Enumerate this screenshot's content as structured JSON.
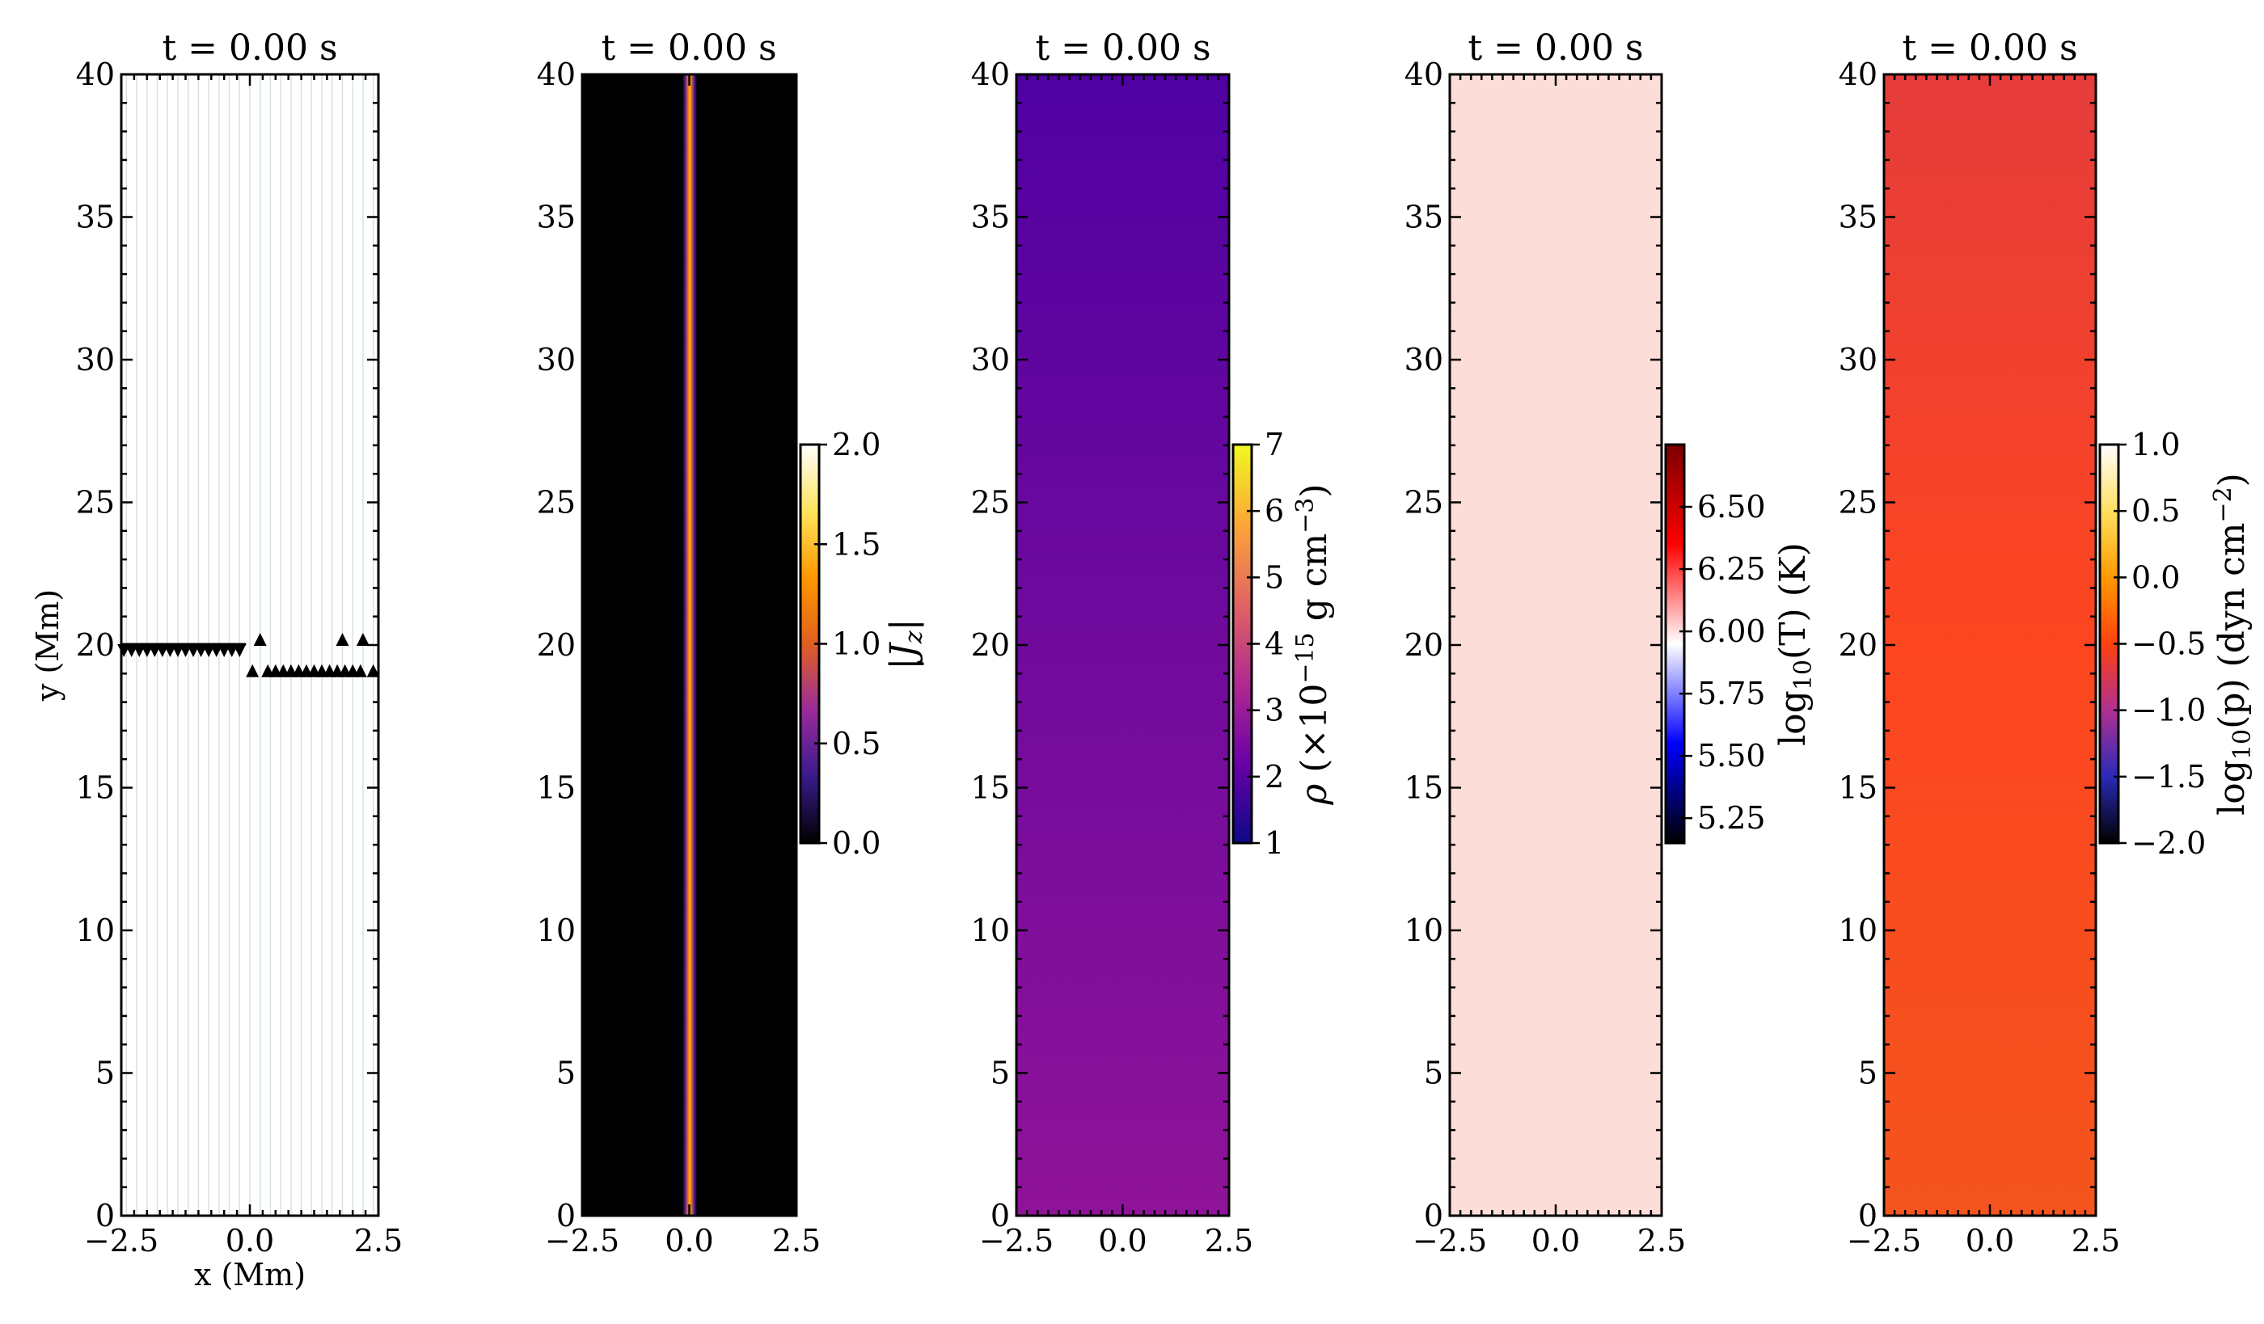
{
  "chart_data": [
    {
      "type": "quiver",
      "title": "t = 0.00 s",
      "xlabel": "x (Mm)",
      "ylabel": "y (Mm)",
      "xlim": [
        -2.5,
        2.5
      ],
      "ylim": [
        0,
        40
      ],
      "xticks": [
        "−2.5",
        "0.0",
        "2.5"
      ],
      "yticks": [
        "0",
        "5",
        "10",
        "15",
        "20",
        "25",
        "30",
        "35",
        "40"
      ],
      "field_line_x": [
        -2.4,
        -2.2,
        -2.0,
        -1.8,
        -1.6,
        -1.4,
        -1.2,
        -1.0,
        -0.8,
        -0.6,
        -0.4,
        -0.2,
        0.0,
        0.2,
        0.4,
        0.6,
        0.8,
        1.0,
        1.2,
        1.4,
        1.6,
        1.8,
        2.0,
        2.2,
        2.4
      ],
      "markers_down": {
        "x": [
          -2.45,
          -2.3,
          -2.15,
          -2.0,
          -1.85,
          -1.7,
          -1.55,
          -1.4,
          -1.25,
          -1.1,
          -0.95,
          -0.8,
          -0.65,
          -0.5,
          -0.35,
          -0.2
        ],
        "y": 19.8
      },
      "markers_up_low": {
        "x": [
          0.05,
          0.35,
          0.5,
          0.65,
          0.8,
          0.95,
          1.1,
          1.25,
          1.4,
          1.55,
          1.7,
          1.85,
          2.0,
          2.15,
          2.4
        ],
        "y": 19.1
      },
      "markers_up_high": {
        "x": [
          0.2,
          1.8,
          2.2
        ],
        "y": 20.2
      }
    },
    {
      "type": "heatmap",
      "title": "t = 0.00 s",
      "xlim": [
        -2.5,
        2.5
      ],
      "ylim": [
        0,
        40
      ],
      "xticks": [
        "−2.5",
        "0.0",
        "2.5"
      ],
      "yticks": [
        "0",
        "5",
        "10",
        "15",
        "20",
        "25",
        "30",
        "35",
        "40"
      ],
      "colorbar": {
        "label": "|J_z|",
        "ticks": [
          "0.0",
          "0.5",
          "1.0",
          "1.5",
          "2.0"
        ],
        "range": [
          0,
          2
        ],
        "cmap": [
          "#000000",
          "#3a1a8c",
          "#9a2a9c",
          "#e06020",
          "#ff9800",
          "#ffe45c",
          "#ffffff"
        ]
      },
      "field": "thin current sheet at x = 0, width about 0.15 Mm, peak |J_z| about 1.3",
      "sheet_center_x": 0.0,
      "sheet_halfwidth": 0.15,
      "peak_value": 1.3
    },
    {
      "type": "heatmap",
      "title": "t = 0.00 s",
      "xlim": [
        -2.5,
        2.5
      ],
      "ylim": [
        0,
        40
      ],
      "xticks": [
        "−2.5",
        "0.0",
        "2.5"
      ],
      "yticks": [
        "0",
        "5",
        "10",
        "15",
        "20",
        "25",
        "30",
        "35",
        "40"
      ],
      "colorbar": {
        "label": "ρ (×10^−15 g cm^−3)",
        "ticks": [
          "1",
          "2",
          "3",
          "4",
          "5",
          "6",
          "7"
        ],
        "range": [
          1,
          7
        ],
        "cmap": [
          "#0d0887",
          "#6a00a8",
          "#b12a90",
          "#e16462",
          "#fca636",
          "#f0f921"
        ]
      },
      "value_top": 1.55,
      "value_bottom": 2.35
    },
    {
      "type": "heatmap",
      "title": "t = 0.00 s",
      "xlim": [
        -2.5,
        2.5
      ],
      "ylim": [
        0,
        40
      ],
      "xticks": [
        "−2.5",
        "0.0",
        "2.5"
      ],
      "yticks": [
        "0",
        "5",
        "10",
        "15",
        "20",
        "25",
        "30",
        "35",
        "40"
      ],
      "colorbar": {
        "label": "log10(T) (K)",
        "ticks": [
          "5.25",
          "5.50",
          "5.75",
          "6.00",
          "6.25",
          "6.50"
        ],
        "range": [
          5.15,
          6.75
        ],
        "cmap": [
          "#000000",
          "#0000ff",
          "#ffffff",
          "#ff0000",
          "#7a0000"
        ]
      },
      "value": 6.05,
      "color": "#fcddd8"
    },
    {
      "type": "heatmap",
      "title": "t = 0.00 s",
      "xlim": [
        -2.5,
        2.5
      ],
      "ylim": [
        0,
        40
      ],
      "xticks": [
        "−2.5",
        "0.0",
        "2.5"
      ],
      "yticks": [
        "0",
        "5",
        "10",
        "15",
        "20",
        "25",
        "30",
        "35",
        "40"
      ],
      "colorbar": {
        "label": "log10(p) (dyn cm^−2)",
        "ticks": [
          "−2.0",
          "−1.5",
          "−1.0",
          "−0.5",
          "0.0",
          "0.5",
          "1.0"
        ],
        "range": [
          -2,
          1
        ],
        "cmap": [
          "#000000",
          "#2a2ab8",
          "#b03090",
          "#ff4010",
          "#ff9a00",
          "#ffe060",
          "#ffffff"
        ]
      },
      "color_top": "#e53c3b",
      "color_mid": "#fd4520",
      "color_bottom": "#f4541e"
    }
  ]
}
